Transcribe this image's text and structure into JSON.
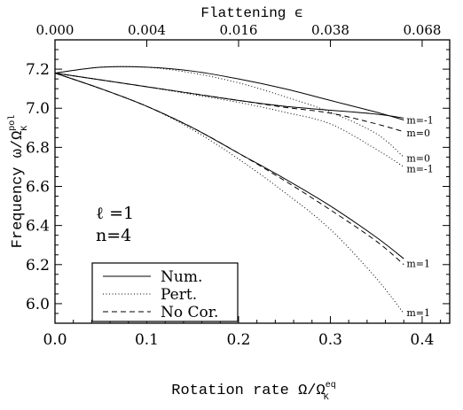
{
  "chart_data": {
    "type": "line",
    "title": "",
    "top_axis": {
      "label": "Flattening ϵ",
      "ticks": [
        {
          "at": 0.0,
          "label": "0.000"
        },
        {
          "at": 0.1,
          "label": "0.004"
        },
        {
          "at": 0.2,
          "label": "0.016"
        },
        {
          "at": 0.3,
          "label": "0.038"
        },
        {
          "at": 0.4,
          "label": "0.068"
        }
      ]
    },
    "xlabel": "Rotation rate Ω/Ω",
    "xlabel_sup": "eq",
    "xlabel_sub": "K",
    "ylabel": "Frequency ω/Ω",
    "ylabel_sup": "pol",
    "ylabel_sub": "K",
    "xlim": [
      0.0,
      0.43
    ],
    "ylim": [
      5.9,
      7.35
    ],
    "xticks": [
      0.0,
      0.1,
      0.2,
      0.3,
      0.4
    ],
    "xtick_labels": [
      "0.0",
      "0.1",
      "0.2",
      "0.3",
      "0.4"
    ],
    "yticks": [
      6.0,
      6.2,
      6.4,
      6.6,
      6.8,
      7.0,
      7.2
    ],
    "ytick_labels": [
      "6.0",
      "6.2",
      "6.4",
      "6.6",
      "6.8",
      "7.0",
      "7.2"
    ],
    "grid": false,
    "mode_label": {
      "l": "ℓ =1",
      "n": "n=4"
    },
    "legend": {
      "placement": "bottom-left",
      "entries": [
        {
          "label": "Num.",
          "style": "solid"
        },
        {
          "label": "Pert.",
          "style": "dotted"
        },
        {
          "label": "No Cor.",
          "style": "dashed"
        }
      ]
    },
    "series": [
      {
        "group": "Num.",
        "style": "solid",
        "x": [
          0.0,
          0.05,
          0.1,
          0.15,
          0.2,
          0.25,
          0.3,
          0.35,
          0.38
        ],
        "y": [
          7.18,
          7.145,
          7.11,
          7.075,
          7.04,
          7.01,
          6.99,
          6.97,
          6.95
        ]
      },
      {
        "group": "Num.",
        "style": "solid",
        "x": [
          0.0,
          0.05,
          0.1,
          0.15,
          0.2,
          0.25,
          0.3,
          0.35,
          0.38
        ],
        "y": [
          7.18,
          7.21,
          7.21,
          7.19,
          7.15,
          7.1,
          7.04,
          6.98,
          6.94
        ]
      },
      {
        "group": "Num.",
        "style": "solid",
        "x": [
          0.0,
          0.05,
          0.1,
          0.15,
          0.2,
          0.25,
          0.3,
          0.35,
          0.38
        ],
        "y": [
          7.18,
          7.1,
          7.01,
          6.9,
          6.77,
          6.64,
          6.5,
          6.34,
          6.23
        ]
      },
      {
        "group": "No Cor.",
        "style": "dashed",
        "x": [
          0.0,
          0.05,
          0.1,
          0.15,
          0.2,
          0.25,
          0.3,
          0.35,
          0.38
        ],
        "y": [
          7.18,
          7.145,
          7.11,
          7.075,
          7.04,
          7.005,
          6.975,
          6.92,
          6.88
        ]
      },
      {
        "group": "No Cor.",
        "style": "dashed",
        "x": [
          0.0,
          0.05,
          0.1,
          0.15,
          0.2,
          0.25,
          0.3,
          0.35,
          0.38
        ],
        "y": [
          7.18,
          7.1,
          7.01,
          6.9,
          6.77,
          6.63,
          6.48,
          6.32,
          6.2
        ]
      },
      {
        "group": "Pert.",
        "style": "dotted",
        "x": [
          0.0,
          0.05,
          0.1,
          0.15,
          0.2,
          0.25,
          0.3,
          0.35,
          0.38
        ],
        "y": [
          7.18,
          7.21,
          7.21,
          7.18,
          7.13,
          7.06,
          6.98,
          6.87,
          6.75
        ]
      },
      {
        "group": "Pert.",
        "style": "dotted",
        "x": [
          0.0,
          0.05,
          0.1,
          0.15,
          0.2,
          0.25,
          0.3,
          0.35,
          0.38
        ],
        "y": [
          7.18,
          7.145,
          7.11,
          7.07,
          7.03,
          6.98,
          6.92,
          6.79,
          6.7
        ]
      },
      {
        "group": "Pert.",
        "style": "dotted",
        "x": [
          0.0,
          0.05,
          0.1,
          0.15,
          0.2,
          0.25,
          0.3,
          0.35,
          0.38
        ],
        "y": [
          7.18,
          7.1,
          7.01,
          6.89,
          6.74,
          6.57,
          6.38,
          6.13,
          5.95
        ]
      }
    ],
    "annotations": [
      {
        "text": "m=-1",
        "x": 0.383,
        "y": 6.94
      },
      {
        "text": "m=0",
        "x": 0.383,
        "y": 6.875
      },
      {
        "text": "m=0",
        "x": 0.383,
        "y": 6.745
      },
      {
        "text": "m=-1",
        "x": 0.383,
        "y": 6.69
      },
      {
        "text": "m=1",
        "x": 0.383,
        "y": 6.205
      },
      {
        "text": "m=1",
        "x": 0.383,
        "y": 5.955
      }
    ]
  }
}
